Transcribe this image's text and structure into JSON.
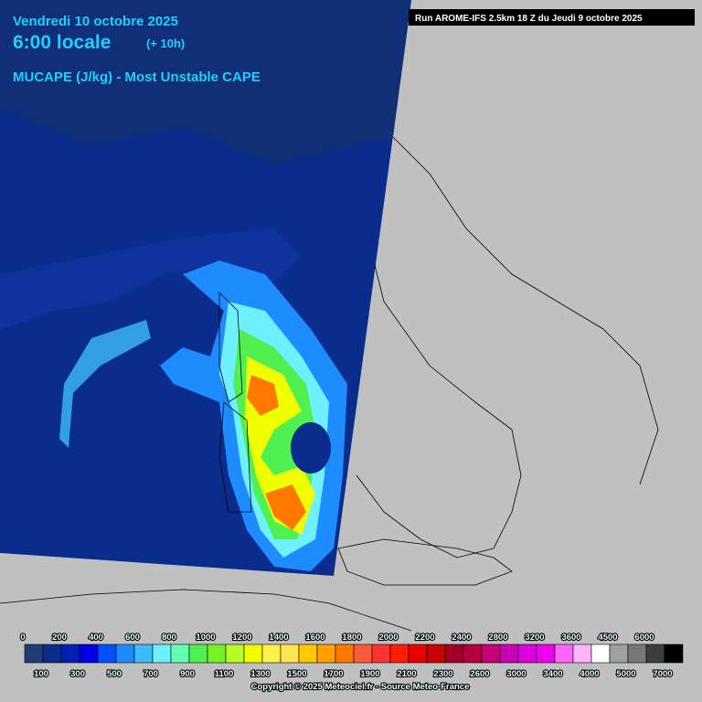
{
  "header": {
    "date": "Vendredi 10 octobre 2025",
    "time": "6:00 locale",
    "lead": "(+ 10h)",
    "parameter": "MUCAPE (J/kg) - Most Unstable CAPE",
    "run": "Run AROME-IFS 2.5km 18 Z du Jeudi 9 octobre 2025"
  },
  "legend": {
    "labels": [
      0,
      100,
      200,
      300,
      400,
      500,
      600,
      700,
      800,
      900,
      1000,
      1100,
      1200,
      1300,
      1400,
      1500,
      1600,
      1700,
      1800,
      1900,
      2000,
      2100,
      2200,
      2300,
      2400,
      2600,
      2800,
      3000,
      3200,
      3400,
      3600,
      4000,
      4500,
      5000,
      6000,
      7000
    ],
    "colors": [
      "#1e3c78",
      "#0a2c8c",
      "#0020b4",
      "#0000e6",
      "#0050ff",
      "#1e8cff",
      "#3cbcff",
      "#6ef0ff",
      "#64ffb4",
      "#50f050",
      "#78f028",
      "#b4ff28",
      "#f0ff00",
      "#fff050",
      "#ffe650",
      "#ffc800",
      "#ffa000",
      "#ff7800",
      "#ff5a3c",
      "#ff3232",
      "#ff1e00",
      "#e60000",
      "#c80000",
      "#a00028",
      "#b4003c",
      "#c80078",
      "#c800b4",
      "#dc00dc",
      "#f000f0",
      "#ff64ff",
      "#ffb4ff",
      "#ffffff",
      "#a0a0a0",
      "#787878",
      "#3c3c3c",
      "#000000"
    ]
  },
  "copyright": "Copyright © 2025 Meteociel.fr - Source Meteo-France"
}
